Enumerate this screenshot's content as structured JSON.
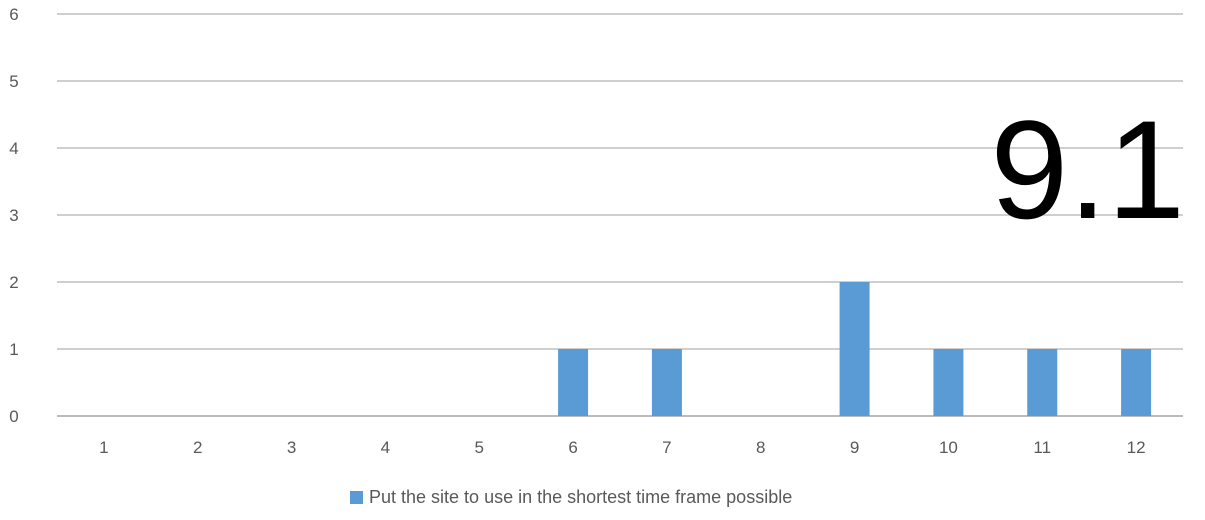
{
  "chart_data": {
    "type": "bar",
    "title": "",
    "xlabel": "",
    "ylabel": "",
    "categories": [
      "1",
      "2",
      "3",
      "4",
      "5",
      "6",
      "7",
      "8",
      "9",
      "10",
      "11",
      "12"
    ],
    "series": [
      {
        "name": "Put the site to use in the shortest time frame possible",
        "values": [
          0,
          0,
          0,
          0,
          0,
          1,
          1,
          0,
          2,
          1,
          1,
          1
        ],
        "color": "#5b9bd5"
      }
    ],
    "ylim": [
      0,
      6
    ],
    "yticks": [
      "0",
      "1",
      "2",
      "3",
      "4",
      "5",
      "6"
    ],
    "grid": true,
    "legend_position": "bottom",
    "annotation": "9.1"
  },
  "colors": {
    "bar": "#5b9bd5",
    "grid": "#bfbfbf",
    "axis": "#a6a6a6",
    "text": "#595959"
  }
}
